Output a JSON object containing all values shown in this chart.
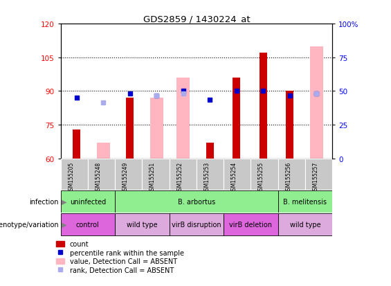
{
  "title": "GDS2859 / 1430224_at",
  "samples": [
    "GSM155205",
    "GSM155248",
    "GSM155249",
    "GSM155251",
    "GSM155252",
    "GSM155253",
    "GSM155254",
    "GSM155255",
    "GSM155256",
    "GSM155257"
  ],
  "bar_bottom": 60,
  "ylim_left": [
    60,
    120
  ],
  "ylim_right": [
    0,
    100
  ],
  "yticks_left": [
    60,
    75,
    90,
    105,
    120
  ],
  "yticks_right": [
    0,
    25,
    50,
    75,
    100
  ],
  "red_bars": [
    73,
    null,
    87,
    null,
    null,
    67,
    96,
    107,
    90,
    null
  ],
  "pink_bars": [
    null,
    67,
    null,
    87,
    96,
    null,
    null,
    null,
    null,
    110
  ],
  "blue_squares": [
    87,
    null,
    89,
    88,
    90,
    86,
    90,
    90,
    88,
    89
  ],
  "lightblue_squares": [
    null,
    85,
    null,
    88,
    89,
    null,
    null,
    null,
    null,
    89
  ],
  "infection_groups": [
    {
      "label": "uninfected",
      "start": 0,
      "end": 2,
      "color": "#90EE90"
    },
    {
      "label": "B. arbortus",
      "start": 2,
      "end": 8,
      "color": "#90EE90"
    },
    {
      "label": "B. melitensis",
      "start": 8,
      "end": 10,
      "color": "#90EE90"
    }
  ],
  "genotype_groups": [
    {
      "label": "control",
      "start": 0,
      "end": 2,
      "color": "#DD66DD"
    },
    {
      "label": "wild type",
      "start": 2,
      "end": 4,
      "color": "#DDAADD"
    },
    {
      "label": "virB disruption",
      "start": 4,
      "end": 6,
      "color": "#DDAADD"
    },
    {
      "label": "virB deletion",
      "start": 6,
      "end": 8,
      "color": "#DD66DD"
    },
    {
      "label": "wild type",
      "start": 8,
      "end": 10,
      "color": "#DDAADD"
    }
  ],
  "red_bar_color": "#CC0000",
  "pink_bar_color": "#FFB6C1",
  "blue_sq_color": "#0000CC",
  "lightblue_sq_color": "#AAAAEE",
  "sample_bg_color": "#C8C8C8",
  "grid_color": "black",
  "legend_items": [
    {
      "type": "patch",
      "color": "#CC0000",
      "label": "count"
    },
    {
      "type": "marker",
      "color": "#0000CC",
      "label": "percentile rank within the sample"
    },
    {
      "type": "patch",
      "color": "#FFB6C1",
      "label": "value, Detection Call = ABSENT"
    },
    {
      "type": "marker",
      "color": "#AAAAEE",
      "label": "rank, Detection Call = ABSENT"
    }
  ]
}
